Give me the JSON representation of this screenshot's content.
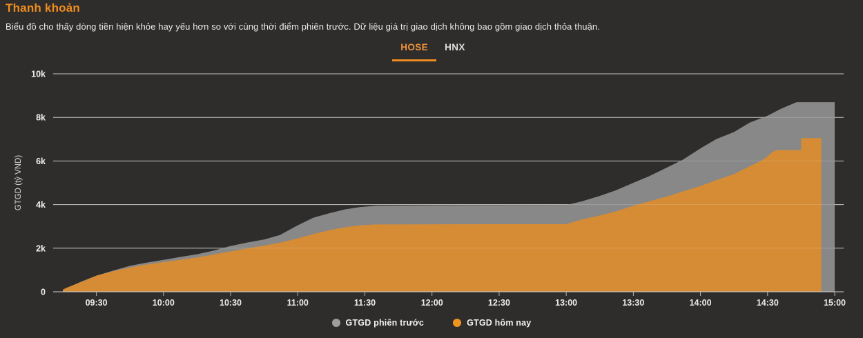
{
  "header": {
    "title": "Thanh khoản",
    "subtitle": "Biểu đồ cho thấy dòng tiền hiện khỏe hay yếu hơn so với cùng thời điểm phiên trước. Dữ liệu giá trị giao dịch không bao gồm giao dịch thỏa thuận."
  },
  "tabs": [
    {
      "label": "HOSE",
      "active": true
    },
    {
      "label": "HNX",
      "active": false
    }
  ],
  "legend": [
    {
      "label": "GTGD phiên trước",
      "color": "#9d9d9d"
    },
    {
      "label": "GTGD hôm nay",
      "color": "#f0941f"
    }
  ],
  "colors": {
    "background": "#2e2d2c",
    "title_orange": "#ee8c1d",
    "tab_active": "#f0923a",
    "tab_underline": "#ee8d1f",
    "gridline": "#c9c9c9",
    "axis_text": "#efeeea",
    "prev_area": "#8c8c8c",
    "today_area": "#d98c32"
  },
  "chart_data": {
    "type": "area",
    "title": "Thanh khoản",
    "ylabel": "GTGD (tỷ VND)",
    "grid": true,
    "legend_position": "bottom",
    "x_axis": {
      "note": "x values are minutes after 09:15; session 09:15-15:00 with lunch flat 11:30-13:00",
      "domain_minutes": [
        -4,
        349
      ],
      "tick_minutes": [
        15,
        45,
        75,
        105,
        135,
        165,
        195,
        225,
        255,
        285,
        315,
        345
      ],
      "tick_labels": [
        "09:30",
        "10:00",
        "10:30",
        "11:00",
        "11:30",
        "12:00",
        "12:30",
        "13:00",
        "13:30",
        "14:00",
        "14:30",
        "15:00"
      ]
    },
    "y_axis": {
      "ylim": [
        0,
        10000
      ],
      "tick_values": [
        0,
        2000,
        4000,
        6000,
        8000,
        10000
      ],
      "tick_labels": [
        "0",
        "2k",
        "4k",
        "6k",
        "8k",
        "10k"
      ]
    },
    "series": [
      {
        "name": "GTGD phiên trước",
        "color": "#8c8c8c",
        "points": [
          [
            0,
            0
          ],
          [
            0,
            60
          ],
          [
            3,
            220
          ],
          [
            8,
            460
          ],
          [
            15,
            740
          ],
          [
            22,
            960
          ],
          [
            30,
            1190
          ],
          [
            37,
            1330
          ],
          [
            45,
            1465
          ],
          [
            52,
            1590
          ],
          [
            60,
            1720
          ],
          [
            67,
            1880
          ],
          [
            75,
            2100
          ],
          [
            82,
            2250
          ],
          [
            90,
            2400
          ],
          [
            97,
            2600
          ],
          [
            105,
            3050
          ],
          [
            112,
            3400
          ],
          [
            119,
            3600
          ],
          [
            126,
            3780
          ],
          [
            133,
            3890
          ],
          [
            140,
            3950
          ],
          [
            160,
            3960
          ],
          [
            190,
            3970
          ],
          [
            225,
            3980
          ],
          [
            232,
            4150
          ],
          [
            240,
            4400
          ],
          [
            247,
            4650
          ],
          [
            255,
            5000
          ],
          [
            262,
            5300
          ],
          [
            270,
            5700
          ],
          [
            277,
            6050
          ],
          [
            285,
            6580
          ],
          [
            292,
            7000
          ],
          [
            300,
            7330
          ],
          [
            307,
            7760
          ],
          [
            315,
            8080
          ],
          [
            321,
            8400
          ],
          [
            328,
            8700
          ],
          [
            345,
            8700
          ],
          [
            345,
            0
          ]
        ]
      },
      {
        "name": "GTGD hôm nay",
        "color": "#d98c32",
        "points": [
          [
            0,
            0
          ],
          [
            0,
            100
          ],
          [
            2,
            200
          ],
          [
            5,
            320
          ],
          [
            10,
            520
          ],
          [
            15,
            740
          ],
          [
            22,
            930
          ],
          [
            30,
            1110
          ],
          [
            37,
            1240
          ],
          [
            45,
            1360
          ],
          [
            52,
            1460
          ],
          [
            60,
            1570
          ],
          [
            67,
            1700
          ],
          [
            75,
            1850
          ],
          [
            82,
            1980
          ],
          [
            90,
            2120
          ],
          [
            97,
            2250
          ],
          [
            105,
            2450
          ],
          [
            112,
            2650
          ],
          [
            119,
            2820
          ],
          [
            126,
            2960
          ],
          [
            133,
            3050
          ],
          [
            140,
            3090
          ],
          [
            160,
            3095
          ],
          [
            190,
            3100
          ],
          [
            225,
            3100
          ],
          [
            231,
            3290
          ],
          [
            240,
            3500
          ],
          [
            247,
            3680
          ],
          [
            255,
            3950
          ],
          [
            262,
            4150
          ],
          [
            270,
            4370
          ],
          [
            277,
            4600
          ],
          [
            285,
            4850
          ],
          [
            292,
            5120
          ],
          [
            300,
            5400
          ],
          [
            307,
            5760
          ],
          [
            312,
            6000
          ],
          [
            315,
            6210
          ],
          [
            317,
            6400
          ],
          [
            319,
            6500
          ],
          [
            330,
            6500
          ],
          [
            330,
            7050
          ],
          [
            339,
            7050
          ],
          [
            339,
            0
          ]
        ]
      }
    ]
  }
}
